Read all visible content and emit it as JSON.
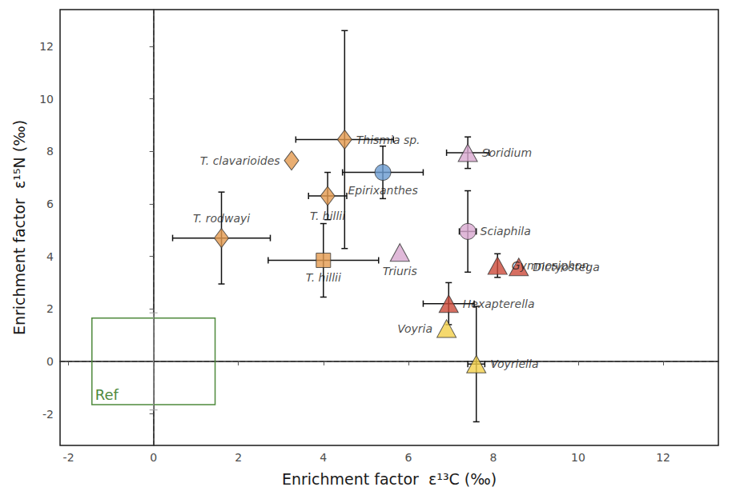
{
  "chart_data": {
    "type": "scatter",
    "x_label": "Enrichment factor  ε¹³C (‰)",
    "y_label": "Enrichment factor  ε¹⁵N (‰)",
    "xlim": [
      -2.2,
      13.3
    ],
    "ylim": [
      -3.2,
      13.4
    ],
    "xticks": [
      -2,
      0,
      2,
      4,
      6,
      8,
      10,
      12
    ],
    "yticks": [
      -2,
      0,
      2,
      4,
      6,
      8,
      10,
      12
    ],
    "grid": false,
    "dashed_lines": {
      "x": 0,
      "y": 0
    },
    "reference": {
      "label": "Ref",
      "x": 0,
      "y": 0,
      "xlim": [
        -1.45,
        1.45
      ],
      "ylim": [
        -1.65,
        1.65
      ],
      "yerr": 1.85,
      "color": "#4f8a3c"
    },
    "series": [
      {
        "name": "T. clavarioides",
        "marker": "diamond",
        "color": "#e39a4f",
        "x": 3.25,
        "y": 7.65,
        "xerr": null,
        "yerr": null
      },
      {
        "name": "Thismia sp.",
        "marker": "diamond",
        "color": "#e39a4f",
        "x": 4.5,
        "y": 8.45,
        "xerr": 1.15,
        "yerr": 4.15
      },
      {
        "name": "T. hillii",
        "marker": "diamond",
        "color": "#e39a4f",
        "x": 4.1,
        "y": 6.3,
        "xerr": 0.45,
        "yerr": 0.9
      },
      {
        "name": "T. rodwayi",
        "marker": "diamond",
        "color": "#e39a4f",
        "x": 1.6,
        "y": 4.7,
        "xerr": 1.15,
        "yerr": 1.75
      },
      {
        "name": "T. hillii",
        "marker": "square",
        "color": "#e39a4f",
        "x": 4.0,
        "y": 3.85,
        "xerr": 1.3,
        "yerr": 1.4
      },
      {
        "name": "Epirixanthes",
        "marker": "circle",
        "color": "#6a9bd1",
        "x": 5.4,
        "y": 7.2,
        "xerr": 0.95,
        "yerr": 1.0
      },
      {
        "name": "Soridium",
        "marker": "triangle",
        "color": "#d8a8d0",
        "x": 7.4,
        "y": 7.95,
        "xerr": 0.5,
        "yerr": 0.6
      },
      {
        "name": "Sciaphila",
        "marker": "circle",
        "color": "#d8a8d0",
        "x": 7.4,
        "y": 4.95,
        "xerr": 0.2,
        "yerr": 1.55
      },
      {
        "name": "Triuris",
        "marker": "triangle",
        "color": "#d8a8d0",
        "x": 5.8,
        "y": 4.15,
        "xerr": null,
        "yerr": null
      },
      {
        "name": "Gymnosiphon",
        "marker": "triangle",
        "color": "#cc4a3a",
        "x": 8.1,
        "y": 3.65,
        "xerr": null,
        "yerr": 0.45
      },
      {
        "name": "Dictyostega",
        "marker": "triangle",
        "color": "#cc4a3a",
        "x": 8.6,
        "y": 3.6,
        "xerr": null,
        "yerr": null
      },
      {
        "name": "Hexapterella",
        "marker": "triangle",
        "color": "#cc4a3a",
        "x": 6.95,
        "y": 2.2,
        "xerr": 0.6,
        "yerr": 0.8
      },
      {
        "name": "Voyria",
        "marker": "triangle",
        "color": "#f2d04a",
        "x": 6.9,
        "y": 1.25,
        "xerr": null,
        "yerr": null
      },
      {
        "name": "Voyriella",
        "marker": "triangle",
        "color": "#f2d04a",
        "x": 7.6,
        "y": -0.1,
        "xerr": 0.2,
        "yerr": 2.2
      }
    ]
  }
}
